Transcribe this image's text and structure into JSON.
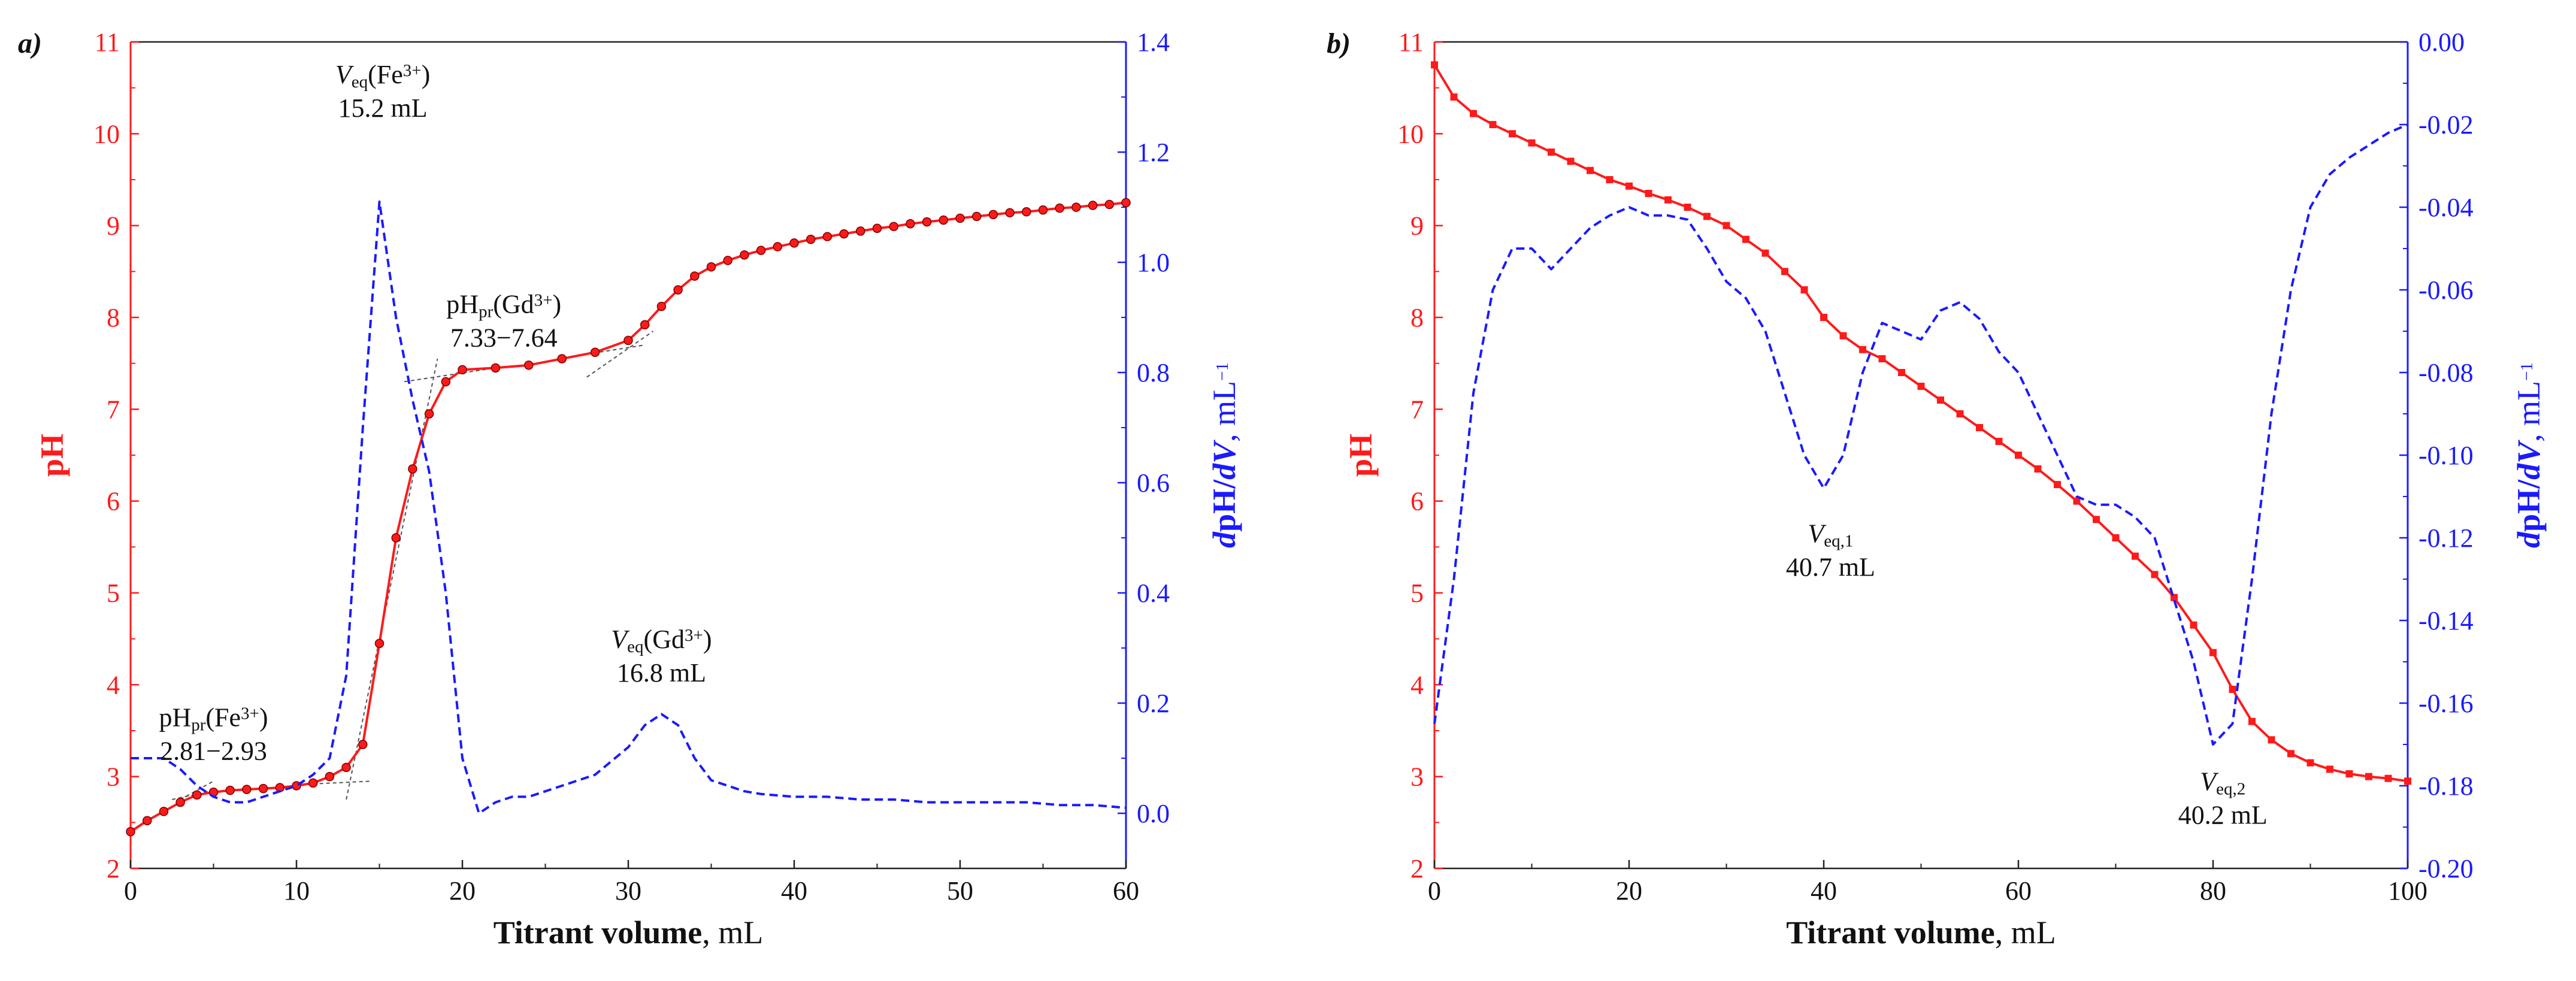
{
  "colors": {
    "ph": "#ff1a1a",
    "deriv": "#1a1aff",
    "text": "#111111",
    "tangent": "#555555"
  },
  "chart_data": [
    {
      "panel_label": "a)",
      "type": "line",
      "xlabel_bold": "Titrant volume",
      "xlabel_unit": ", mL",
      "ylabel": "pH",
      "y2label_parts": [
        "d",
        "pH/",
        "dV",
        ", mL",
        "−1"
      ],
      "xlim": [
        0,
        60
      ],
      "ylim": [
        2,
        11
      ],
      "y2lim": [
        -0.1,
        1.4
      ],
      "xticks": [
        "0",
        "10",
        "20",
        "30",
        "40",
        "50",
        "60"
      ],
      "yticks": [
        "2",
        "3",
        "4",
        "5",
        "6",
        "7",
        "8",
        "9",
        "10",
        "11"
      ],
      "y2ticks": [
        "0.0",
        "0.2",
        "0.4",
        "0.6",
        "0.8",
        "1.0",
        "1.2",
        "1.4"
      ],
      "series": [
        {
          "name": "pH",
          "axis": "left",
          "style": "solid-markers",
          "x": [
            0,
            1,
            2,
            3,
            4,
            5,
            6,
            7,
            8,
            9,
            10,
            11,
            12,
            13,
            14,
            15,
            16,
            17,
            18,
            19,
            20,
            22,
            24,
            26,
            28,
            30,
            31,
            32,
            33,
            34,
            35,
            36,
            37,
            38,
            39,
            40,
            41,
            42,
            43,
            44,
            45,
            46,
            47,
            48,
            49,
            50,
            51,
            52,
            53,
            54,
            55,
            56,
            57,
            58,
            59,
            60
          ],
          "y": [
            2.4,
            2.52,
            2.62,
            2.72,
            2.8,
            2.83,
            2.85,
            2.86,
            2.87,
            2.88,
            2.9,
            2.93,
            3.0,
            3.1,
            3.35,
            4.45,
            5.6,
            6.35,
            6.95,
            7.3,
            7.43,
            7.45,
            7.48,
            7.55,
            7.62,
            7.75,
            7.92,
            8.12,
            8.3,
            8.45,
            8.55,
            8.62,
            8.68,
            8.73,
            8.77,
            8.81,
            8.85,
            8.88,
            8.91,
            8.94,
            8.97,
            8.99,
            9.02,
            9.04,
            9.06,
            9.08,
            9.1,
            9.12,
            9.14,
            9.15,
            9.17,
            9.19,
            9.2,
            9.22,
            9.23,
            9.25
          ]
        },
        {
          "name": "dpH/dV",
          "axis": "right",
          "style": "dashed",
          "x": [
            0,
            2,
            3,
            4,
            5,
            6,
            7,
            8,
            9,
            10,
            11,
            12,
            13,
            14,
            15,
            16,
            17,
            18,
            19,
            20,
            21,
            22,
            23,
            24,
            26,
            28,
            30,
            31,
            32,
            33,
            34,
            35,
            36,
            37,
            38,
            40,
            42,
            44,
            46,
            48,
            50,
            52,
            54,
            56,
            58,
            60
          ],
          "y": [
            0.1,
            0.1,
            0.08,
            0.05,
            0.03,
            0.02,
            0.02,
            0.03,
            0.04,
            0.05,
            0.07,
            0.1,
            0.25,
            0.7,
            1.11,
            0.9,
            0.75,
            0.62,
            0.4,
            0.1,
            0.0,
            0.02,
            0.03,
            0.03,
            0.05,
            0.07,
            0.12,
            0.16,
            0.18,
            0.16,
            0.1,
            0.06,
            0.05,
            0.04,
            0.035,
            0.03,
            0.03,
            0.025,
            0.025,
            0.02,
            0.02,
            0.02,
            0.02,
            0.015,
            0.015,
            0.01
          ]
        }
      ],
      "tangent_lines": [
        {
          "axis": "left",
          "points": [
            [
              2.5,
              2.75
            ],
            [
              5.0,
              2.85
            ]
          ]
        },
        {
          "axis": "left",
          "points": [
            [
              3.0,
              2.75
            ],
            [
              5.0,
              2.95
            ]
          ]
        },
        {
          "axis": "left",
          "points": [
            [
              11.0,
              2.92
            ],
            [
              14.5,
              2.95
            ]
          ]
        },
        {
          "axis": "left",
          "points": [
            [
              13.0,
              2.75
            ],
            [
              18.5,
              7.55
            ]
          ]
        },
        {
          "axis": "left",
          "points": [
            [
              16.5,
              7.3
            ],
            [
              22.0,
              7.45
            ]
          ]
        },
        {
          "axis": "left",
          "points": [
            [
              27.5,
              7.6
            ],
            [
              31.0,
              7.7
            ]
          ]
        },
        {
          "axis": "left",
          "points": [
            [
              27.5,
              7.35
            ],
            [
              31.5,
              7.85
            ]
          ]
        }
      ],
      "annotations": [
        {
          "lines": [
            [
              [
                "V",
                "italic"
              ],
              [
                "eq",
                "sub"
              ],
              [
                "(Fe",
                "normal"
              ],
              [
                "3+",
                "sup"
              ],
              [
                ")",
                "normal"
              ]
            ],
            [
              [
                "15.2 mL",
                "normal"
              ]
            ]
          ],
          "x": 15.2,
          "y": 10.55,
          "axis": "left"
        },
        {
          "lines": [
            [
              [
                "pH",
                "normal"
              ],
              [
                "pr",
                "sub"
              ],
              [
                "(Gd",
                "normal"
              ],
              [
                "3+",
                "sup"
              ],
              [
                ")",
                "normal"
              ]
            ],
            [
              [
                "7.33−7.64",
                "normal"
              ]
            ]
          ],
          "x": 22.5,
          "y": 8.05,
          "axis": "left"
        },
        {
          "lines": [
            [
              [
                "V",
                "italic"
              ],
              [
                "eq",
                "sub"
              ],
              [
                "(Gd",
                "normal"
              ],
              [
                "3+",
                "sup"
              ],
              [
                ")",
                "normal"
              ]
            ],
            [
              [
                "16.8 mL",
                "normal"
              ]
            ]
          ],
          "x": 32.0,
          "y": 4.4,
          "axis": "left"
        },
        {
          "lines": [
            [
              [
                "pH",
                "normal"
              ],
              [
                "pr",
                "sub"
              ],
              [
                "(Fe",
                "normal"
              ],
              [
                "3+",
                "sup"
              ],
              [
                ")",
                "normal"
              ]
            ],
            [
              [
                "2.81−2.93",
                "normal"
              ]
            ]
          ],
          "x": 5.0,
          "y": 3.55,
          "axis": "left"
        }
      ]
    },
    {
      "panel_label": "b)",
      "type": "line",
      "xlabel_bold": "Titrant volume",
      "xlabel_unit": ", mL",
      "ylabel": "pH",
      "y2label_parts": [
        "d",
        "pH/",
        "dV",
        ", mL",
        "−1"
      ],
      "xlim": [
        0,
        100
      ],
      "ylim": [
        2,
        11
      ],
      "y2lim": [
        -0.2,
        0.0
      ],
      "xticks": [
        "0",
        "20",
        "40",
        "60",
        "80",
        "100"
      ],
      "yticks": [
        "2",
        "3",
        "4",
        "5",
        "6",
        "7",
        "8",
        "9",
        "10",
        "11"
      ],
      "y2ticks": [
        "-0.20",
        "-0.18",
        "-0.16",
        "-0.14",
        "-0.12",
        "-0.10",
        "-0.08",
        "-0.06",
        "-0.04",
        "-0.02",
        "0.00"
      ],
      "series": [
        {
          "name": "pH",
          "axis": "left",
          "style": "solid-markers",
          "x": [
            0,
            2,
            4,
            6,
            8,
            10,
            12,
            14,
            16,
            18,
            20,
            22,
            24,
            26,
            28,
            30,
            32,
            34,
            36,
            38,
            40,
            42,
            44,
            46,
            48,
            50,
            52,
            54,
            56,
            58,
            60,
            62,
            64,
            66,
            68,
            70,
            72,
            74,
            76,
            78,
            80,
            82,
            84,
            86,
            88,
            90,
            92,
            94,
            96,
            98,
            100
          ],
          "y": [
            10.75,
            10.4,
            10.22,
            10.1,
            10.0,
            9.9,
            9.8,
            9.7,
            9.6,
            9.5,
            9.43,
            9.35,
            9.28,
            9.2,
            9.1,
            9.0,
            8.85,
            8.7,
            8.5,
            8.3,
            8.0,
            7.8,
            7.65,
            7.55,
            7.4,
            7.25,
            7.1,
            6.95,
            6.8,
            6.65,
            6.5,
            6.35,
            6.18,
            6.0,
            5.8,
            5.6,
            5.4,
            5.2,
            4.95,
            4.65,
            4.35,
            3.95,
            3.6,
            3.4,
            3.25,
            3.15,
            3.08,
            3.03,
            3.0,
            2.98,
            2.95
          ]
        },
        {
          "name": "dpH/dV",
          "axis": "right",
          "style": "dashed",
          "x": [
            0,
            2,
            4,
            6,
            8,
            10,
            12,
            14,
            16,
            18,
            20,
            22,
            24,
            26,
            28,
            30,
            32,
            34,
            36,
            38,
            40,
            42,
            44,
            46,
            48,
            50,
            52,
            54,
            56,
            58,
            60,
            62,
            64,
            66,
            68,
            70,
            72,
            74,
            76,
            78,
            80,
            82,
            84,
            86,
            88,
            90,
            92,
            94,
            96,
            98,
            100
          ],
          "y": [
            -0.165,
            -0.13,
            -0.085,
            -0.06,
            -0.05,
            -0.05,
            -0.055,
            -0.05,
            -0.045,
            -0.042,
            -0.04,
            -0.042,
            -0.042,
            -0.043,
            -0.05,
            -0.058,
            -0.062,
            -0.07,
            -0.085,
            -0.1,
            -0.108,
            -0.1,
            -0.08,
            -0.068,
            -0.07,
            -0.072,
            -0.065,
            -0.063,
            -0.067,
            -0.075,
            -0.08,
            -0.09,
            -0.1,
            -0.11,
            -0.112,
            -0.112,
            -0.115,
            -0.12,
            -0.135,
            -0.15,
            -0.17,
            -0.165,
            -0.13,
            -0.09,
            -0.06,
            -0.04,
            -0.032,
            -0.028,
            -0.025,
            -0.022,
            -0.02
          ]
        }
      ],
      "tangent_lines": [],
      "annotations": [
        {
          "lines": [
            [
              [
                "V",
                "italic"
              ],
              [
                "eq,1",
                "sub"
              ]
            ],
            [
              [
                "40.7 mL",
                "normal"
              ]
            ]
          ],
          "x": 40.7,
          "y": 5.55,
          "axis": "left"
        },
        {
          "lines": [
            [
              [
                "V",
                "italic"
              ],
              [
                "eq,2",
                "sub"
              ]
            ],
            [
              [
                "40.2 mL",
                "normal"
              ]
            ]
          ],
          "x": 81.0,
          "y": 2.85,
          "axis": "left"
        }
      ]
    }
  ]
}
